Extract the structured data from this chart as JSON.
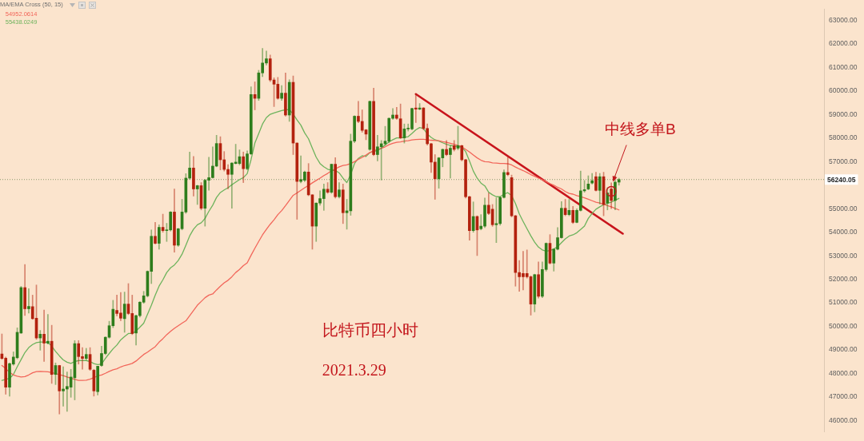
{
  "chart_data": {
    "type": "candlestick",
    "categories": [
      null,
      null,
      null,
      null,
      null,
      null,
      null,
      null,
      null,
      null,
      null,
      null,
      null,
      null,
      null,
      null,
      null,
      null,
      null,
      null,
      null,
      null,
      null,
      null,
      null,
      null,
      null,
      null,
      null,
      null,
      null,
      null,
      null,
      null,
      null,
      null,
      null,
      null,
      null,
      null,
      null,
      null,
      null,
      null,
      null,
      null,
      null,
      null,
      null,
      null,
      null,
      null,
      null,
      null,
      null,
      null,
      null,
      null,
      null,
      null,
      null,
      null,
      null,
      null,
      null,
      null,
      null,
      null,
      null,
      null,
      null,
      null,
      null,
      null,
      null,
      null,
      null,
      null,
      null,
      null,
      null,
      null,
      null,
      null,
      null,
      null,
      null,
      null,
      null,
      null,
      null,
      null,
      null,
      null,
      null,
      null,
      null,
      null,
      null,
      null,
      null,
      null,
      null,
      null,
      null,
      null,
      null,
      null,
      null,
      null,
      null,
      null,
      null,
      null,
      null,
      null,
      null,
      null,
      null,
      null,
      null,
      null,
      null,
      null,
      null,
      null,
      null,
      null,
      null,
      null,
      null,
      null,
      null,
      null,
      null,
      null,
      null,
      null,
      null,
      null,
      null,
      null,
      null,
      null,
      null,
      null,
      null,
      null,
      null,
      null,
      null,
      null,
      null,
      null,
      null,
      null,
      null,
      null,
      null,
      null,
      null,
      null,
      null,
      null,
      null,
      null,
      null,
      null,
      null,
      null,
      null,
      null,
      null,
      null,
      null,
      null,
      null,
      null,
      null,
      null,
      null,
      null,
      null,
      null,
      null,
      null,
      null,
      null,
      null,
      null,
      null,
      null,
      null,
      null,
      null,
      null,
      null,
      null,
      null,
      null,
      null,
      null,
      null,
      null,
      null,
      null,
      null,
      null,
      null,
      null,
      null,
      null,
      null,
      null,
      null
    ],
    "ohlc": [
      [
        48830,
        49680,
        48600,
        48640
      ],
      [
        48650,
        48700,
        47120,
        47420
      ],
      [
        47420,
        48450,
        47040,
        48420
      ],
      [
        48400,
        48920,
        48350,
        48700
      ],
      [
        48670,
        49940,
        48620,
        49750
      ],
      [
        49720,
        51700,
        49700,
        51650
      ],
      [
        51650,
        52630,
        50460,
        50750
      ],
      [
        50750,
        51600,
        50570,
        50850
      ],
      [
        50840,
        51330,
        50300,
        50330
      ],
      [
        50350,
        51760,
        49450,
        49510
      ],
      [
        49510,
        49830,
        48990,
        49670
      ],
      [
        49670,
        50700,
        48510,
        49290
      ],
      [
        49290,
        50510,
        49250,
        49370
      ],
      [
        49370,
        50050,
        47580,
        47960
      ],
      [
        47960,
        48450,
        47530,
        48340
      ],
      [
        48340,
        48350,
        46280,
        47260
      ],
      [
        47260,
        48290,
        46610,
        47340
      ],
      [
        47340,
        48070,
        46390,
        47450
      ],
      [
        47420,
        48180,
        46990,
        47850
      ],
      [
        47820,
        49400,
        46880,
        49270
      ],
      [
        49270,
        49400,
        48400,
        48720
      ],
      [
        48720,
        49100,
        48180,
        48640
      ],
      [
        48640,
        49070,
        48570,
        48810
      ],
      [
        48810,
        49100,
        48130,
        48180
      ],
      [
        48140,
        48180,
        47040,
        47260
      ],
      [
        47230,
        48310,
        47090,
        48310
      ],
      [
        48340,
        49160,
        48300,
        48850
      ],
      [
        48850,
        49560,
        48800,
        49540
      ],
      [
        49540,
        50220,
        49500,
        50030
      ],
      [
        50030,
        51110,
        49950,
        50730
      ],
      [
        50680,
        51330,
        50450,
        50550
      ],
      [
        50570,
        51440,
        50240,
        50350
      ],
      [
        50330,
        51460,
        49750,
        50950
      ],
      [
        50950,
        51820,
        50500,
        50550
      ],
      [
        50550,
        51330,
        49650,
        49700
      ],
      [
        49720,
        50480,
        49210,
        50460
      ],
      [
        50460,
        51050,
        50400,
        51030
      ],
      [
        51030,
        51490,
        50980,
        51300
      ],
      [
        51300,
        52360,
        51250,
        52340
      ],
      [
        52340,
        54100,
        51820,
        53830
      ],
      [
        53830,
        54420,
        53500,
        53530
      ],
      [
        53530,
        54320,
        53280,
        54210
      ],
      [
        54210,
        54770,
        54000,
        54070
      ],
      [
        54070,
        54380,
        53610,
        54100
      ],
      [
        54100,
        54880,
        54050,
        54860
      ],
      [
        54860,
        55840,
        53150,
        53450
      ],
      [
        53450,
        54170,
        53400,
        54150
      ],
      [
        54150,
        55400,
        54100,
        54860
      ],
      [
        54860,
        56490,
        54800,
        56300
      ],
      [
        56300,
        57410,
        56250,
        56730
      ],
      [
        56730,
        57220,
        55540,
        55840
      ],
      [
        55840,
        56000,
        55180,
        55980
      ],
      [
        55980,
        56110,
        54950,
        55020
      ],
      [
        55020,
        56250,
        54260,
        56210
      ],
      [
        56210,
        57190,
        55780,
        56320
      ],
      [
        56320,
        57630,
        56300,
        56810
      ],
      [
        56810,
        58120,
        56780,
        57770
      ],
      [
        57770,
        58060,
        56650,
        57080
      ],
      [
        57080,
        57430,
        56600,
        56670
      ],
      [
        56670,
        56870,
        55840,
        56460
      ],
      [
        56460,
        56960,
        55020,
        56940
      ],
      [
        56920,
        57740,
        56900,
        56980
      ],
      [
        56920,
        57500,
        56860,
        57210
      ],
      [
        57210,
        57410,
        56110,
        56700
      ],
      [
        56700,
        57460,
        56650,
        57330
      ],
      [
        57330,
        60180,
        57300,
        59850
      ],
      [
        59850,
        60390,
        59200,
        59690
      ],
      [
        59690,
        60880,
        59600,
        60770
      ],
      [
        60770,
        61810,
        60610,
        61190
      ],
      [
        61190,
        61700,
        61100,
        61370
      ],
      [
        61370,
        61530,
        60400,
        60470
      ],
      [
        60470,
        60560,
        59340,
        60290
      ],
      [
        60290,
        60580,
        59650,
        59690
      ],
      [
        59690,
        60230,
        59600,
        59910
      ],
      [
        59910,
        60770,
        58930,
        58980
      ],
      [
        58980,
        60480,
        58710,
        60370
      ],
      [
        60370,
        60640,
        57300,
        57790
      ],
      [
        57790,
        57800,
        54550,
        56160
      ],
      [
        56160,
        57250,
        56100,
        56240
      ],
      [
        56210,
        56600,
        56150,
        56560
      ],
      [
        56560,
        56920,
        55550,
        55590
      ],
      [
        55590,
        55600,
        53280,
        54260
      ],
      [
        54260,
        55250,
        53610,
        55240
      ],
      [
        55240,
        55760,
        55150,
        55430
      ],
      [
        55430,
        56050,
        54930,
        55830
      ],
      [
        55830,
        56110,
        55650,
        55700
      ],
      [
        55700,
        56900,
        55650,
        56890
      ],
      [
        56890,
        57170,
        55450,
        55510
      ],
      [
        55510,
        56110,
        55450,
        55800
      ],
      [
        55800,
        56050,
        54370,
        54830
      ],
      [
        54830,
        55400,
        54130,
        54910
      ],
      [
        54910,
        58170,
        54720,
        57870
      ],
      [
        57870,
        58950,
        57800,
        58930
      ],
      [
        58930,
        59560,
        58650,
        58710
      ],
      [
        58710,
        59200,
        58250,
        58330
      ],
      [
        58350,
        58370,
        57930,
        58170
      ],
      [
        57520,
        59580,
        57480,
        59560
      ],
      [
        59560,
        60120,
        57250,
        57300
      ],
      [
        57300,
        58120,
        57030,
        57630
      ],
      [
        57630,
        57900,
        56220,
        57760
      ],
      [
        57760,
        58500,
        57700,
        57870
      ],
      [
        57870,
        58860,
        57800,
        58840
      ],
      [
        58840,
        59260,
        58800,
        58980
      ],
      [
        58980,
        59310,
        58800,
        58840
      ],
      [
        58820,
        59450,
        57980,
        58010
      ],
      [
        58010,
        58600,
        57790,
        58390
      ],
      [
        58390,
        58600,
        58300,
        58410
      ],
      [
        58390,
        59270,
        58350,
        59260
      ],
      [
        59280,
        59890,
        58660,
        59230
      ],
      [
        59230,
        59470,
        59200,
        59280
      ],
      [
        59280,
        59300,
        58350,
        58410
      ],
      [
        58410,
        58600,
        57700,
        57760
      ],
      [
        57760,
        57780,
        56540,
        56980
      ],
      [
        56980,
        57300,
        55400,
        56270
      ],
      [
        56270,
        57180,
        55870,
        57160
      ],
      [
        57160,
        57540,
        56780,
        57520
      ],
      [
        57520,
        57900,
        57250,
        57300
      ],
      [
        57300,
        57680,
        56300,
        57570
      ],
      [
        57680,
        57900,
        57450,
        57520
      ],
      [
        57570,
        58500,
        57500,
        57680
      ],
      [
        57680,
        57700,
        57030,
        57080
      ],
      [
        57080,
        57100,
        55450,
        55510
      ],
      [
        55510,
        55530,
        53660,
        54070
      ],
      [
        54070,
        55290,
        54000,
        54670
      ],
      [
        54670,
        54700,
        53010,
        54100
      ],
      [
        54150,
        54750,
        54100,
        54260
      ],
      [
        54260,
        55460,
        54200,
        55150
      ],
      [
        55150,
        55670,
        54750,
        54800
      ],
      [
        54980,
        55180,
        54250,
        54320
      ],
      [
        54320,
        55460,
        53560,
        54370
      ],
      [
        54370,
        55500,
        54300,
        55480
      ],
      [
        55480,
        56650,
        55450,
        56540
      ],
      [
        56540,
        57190,
        56400,
        56450
      ],
      [
        56320,
        56430,
        54650,
        54700
      ],
      [
        54700,
        54720,
        51710,
        52290
      ],
      [
        52290,
        52800,
        51490,
        52110
      ],
      [
        52250,
        53190,
        51550,
        52110
      ],
      [
        52250,
        53250,
        52050,
        52110
      ],
      [
        52110,
        52150,
        50480,
        50950
      ],
      [
        50950,
        52220,
        50620,
        52200
      ],
      [
        52200,
        52740,
        51200,
        51280
      ],
      [
        51280,
        52740,
        51220,
        52420
      ],
      [
        52420,
        53550,
        52350,
        53530
      ],
      [
        53530,
        53900,
        52650,
        52690
      ],
      [
        52690,
        53300,
        52350,
        53280
      ],
      [
        53280,
        54200,
        53250,
        53770
      ],
      [
        53770,
        55300,
        53750,
        55020
      ],
      [
        55020,
        55400,
        54700,
        54750
      ],
      [
        54750,
        55400,
        54700,
        54930
      ],
      [
        54930,
        55100,
        54370,
        54420
      ],
      [
        54420,
        55000,
        54400,
        54930
      ],
      [
        54930,
        56600,
        54900,
        55760
      ],
      [
        55760,
        56200,
        55700,
        55810
      ],
      [
        55840,
        56400,
        55800,
        56050
      ],
      [
        56090,
        56500,
        56050,
        56190
      ],
      [
        56360,
        56550,
        55750,
        55780
      ],
      [
        55780,
        56500,
        55200,
        56360
      ],
      [
        56360,
        56550,
        54700,
        55180
      ],
      [
        55240,
        55900,
        54950,
        55670
      ],
      [
        55840,
        56100,
        55000,
        55350
      ],
      [
        55350,
        56400,
        54950,
        56130
      ],
      [
        56130,
        56300,
        56000,
        56240
      ],
      null,
      null,
      null,
      null,
      null,
      null,
      null,
      null,
      null,
      null,
      null,
      null,
      null,
      null,
      null,
      null,
      null,
      null,
      null,
      null,
      null,
      null,
      null,
      null,
      null,
      null,
      null,
      null,
      null,
      null,
      null,
      null,
      null,
      null,
      null,
      null,
      null,
      null,
      null,
      null,
      null,
      null,
      null,
      null,
      null,
      null,
      null,
      null,
      null,
      null,
      null,
      null,
      null
    ],
    "colors": [
      "#b3210e",
      "#b3210e",
      "#2e7d1c",
      "#2e7d1c",
      "#2e7d1c",
      "#2e7d1c",
      "#b3210e",
      "#2e7d1c",
      "#b3210e",
      "#b3210e",
      "#2e7d1c",
      "#b3210e",
      "#2e7d1c",
      "#b3210e",
      "#2e7d1c",
      "#b3210e",
      "#2e7d1c",
      "#2e7d1c",
      "#2e7d1c",
      "#2e7d1c",
      "#b3210e",
      "#b3210e",
      "#2e7d1c",
      "#b3210e",
      "#b3210e",
      "#2e7d1c",
      "#2e7d1c",
      "#2e7d1c",
      "#2e7d1c",
      "#2e7d1c",
      "#b3210e",
      "#b3210e",
      "#2e7d1c",
      "#b3210e",
      "#b3210e",
      "#2e7d1c",
      "#2e7d1c",
      "#2e7d1c",
      "#2e7d1c",
      "#2e7d1c",
      "#b3210e",
      "#2e7d1c",
      "#b3210e",
      "#2e7d1c",
      "#2e7d1c",
      "#b3210e",
      "#2e7d1c",
      "#2e7d1c",
      "#2e7d1c",
      "#2e7d1c",
      "#b3210e",
      "#2e7d1c",
      "#b3210e",
      "#2e7d1c",
      "#2e7d1c",
      "#2e7d1c",
      "#2e7d1c",
      "#b3210e",
      "#b3210e",
      "#b3210e",
      "#2e7d1c",
      "#2e7d1c",
      "#2e7d1c",
      "#b3210e",
      "#2e7d1c",
      "#2e7d1c",
      "#b3210e",
      "#2e7d1c",
      "#2e7d1c",
      "#2e7d1c",
      "#b3210e",
      "#b3210e",
      "#b3210e",
      "#2e7d1c",
      "#b3210e",
      "#2e7d1c",
      "#b3210e",
      "#b3210e",
      "#2e7d1c",
      "#2e7d1c",
      "#b3210e",
      "#b3210e",
      "#2e7d1c",
      "#2e7d1c",
      "#2e7d1c",
      "#b3210e",
      "#2e7d1c",
      "#b3210e",
      "#2e7d1c",
      "#b3210e",
      "#2e7d1c",
      "#2e7d1c",
      "#2e7d1c",
      "#b3210e",
      "#b3210e",
      "#b3210e",
      "#2e7d1c",
      "#b3210e",
      "#2e7d1c",
      "#2e7d1c",
      "#2e7d1c",
      "#2e7d1c",
      "#2e7d1c",
      "#b3210e",
      "#b3210e",
      "#2e7d1c",
      "#2e7d1c",
      "#2e7d1c",
      "#b3210e",
      "#2e7d1c",
      "#b3210e",
      "#b3210e",
      "#b3210e",
      "#b3210e",
      "#2e7d1c",
      "#2e7d1c",
      "#b3210e",
      "#2e7d1c",
      "#b3210e",
      "#2e7d1c",
      "#b3210e",
      "#b3210e",
      "#b3210e",
      "#2e7d1c",
      "#b3210e",
      "#2e7d1c",
      "#2e7d1c",
      "#b3210e",
      "#b3210e",
      "#2e7d1c",
      "#2e7d1c",
      "#2e7d1c",
      "#b3210e",
      "#b3210e",
      "#b3210e",
      "#b3210e",
      "#b3210e",
      "#b3210e",
      "#b3210e",
      "#2e7d1c",
      "#b3210e",
      "#2e7d1c",
      "#2e7d1c",
      "#b3210e",
      "#2e7d1c",
      "#2e7d1c",
      "#2e7d1c",
      "#b3210e",
      "#2e7d1c",
      "#b3210e",
      "#2e7d1c",
      "#2e7d1c",
      "#2e7d1c",
      "#2e7d1c",
      "#2e7d1c",
      "#b3210e",
      "#2e7d1c",
      "#b3210e",
      "#2e7d1c",
      "#b3210e",
      "#2e7d1c",
      "#2e7d1c",
      null,
      null,
      null,
      null,
      null,
      null,
      null,
      null,
      null,
      null,
      null,
      null,
      null,
      null,
      null,
      null,
      null,
      null,
      null,
      null,
      null,
      null,
      null,
      null,
      null,
      null,
      null,
      null,
      null,
      null,
      null,
      null,
      null,
      null,
      null,
      null,
      null,
      null,
      null,
      null,
      null,
      null,
      null,
      null,
      null,
      null,
      null,
      null,
      null,
      null,
      null,
      null,
      null
    ],
    "series": [
      {
        "type": "line",
        "name": "54952.0614",
        "color": "#f2665a",
        "values": [
          48340,
          48210,
          48050,
          47940,
          47890,
          47850,
          47870,
          47940,
          48030,
          48080,
          48090,
          48080,
          48070,
          48040,
          48000,
          47950,
          47910,
          47850,
          47800,
          47750,
          47710,
          47710,
          47720,
          47760,
          47830,
          47900,
          47940,
          48010,
          48090,
          48160,
          48200,
          48280,
          48340,
          48380,
          48430,
          48530,
          48670,
          48810,
          48910,
          49030,
          49140,
          49330,
          49480,
          49650,
          49790,
          49920,
          50030,
          50140,
          50240,
          50460,
          50680,
          50900,
          51060,
          51220,
          51330,
          51380,
          51550,
          51710,
          51850,
          51960,
          52110,
          52290,
          52420,
          52580,
          52700,
          53020,
          53320,
          53610,
          53890,
          54120,
          54340,
          54530,
          54750,
          54920,
          55130,
          55350,
          55570,
          55670,
          55780,
          55890,
          55990,
          56100,
          56200,
          56300,
          56410,
          56500,
          56610,
          56690,
          56780,
          56840,
          56860,
          56920,
          57000,
          57100,
          57180,
          57280,
          57390,
          57460,
          57520,
          57570,
          57630,
          57720,
          57780,
          57820,
          57840,
          57870,
          57890,
          57920,
          57940,
          57950,
          57950,
          57930,
          57910,
          57900,
          57890,
          57850,
          57820,
          57780,
          57740,
          57690,
          57630,
          57520,
          57410,
          57280,
          57160,
          57060,
          57000,
          56990,
          56950,
          56940,
          56920,
          56920,
          56910,
          56860,
          56770,
          56690,
          56620,
          56540,
          56450,
          56380,
          56300,
          56230,
          56150,
          56070,
          56000,
          55910,
          55840,
          55730,
          55650,
          55620,
          55560,
          55510,
          55460,
          55400,
          55340,
          55280,
          55240,
          55190,
          55130,
          55080,
          55010,
          54950,
          null,
          null,
          null,
          null,
          null,
          null,
          null,
          null,
          null,
          null,
          null,
          null,
          null,
          null,
          null,
          null,
          null,
          null,
          null,
          null,
          null,
          null,
          null,
          null,
          null,
          null,
          null,
          null,
          null,
          null,
          null,
          null,
          null,
          null,
          null,
          null,
          null,
          null,
          null,
          null,
          null,
          null,
          null,
          null,
          null,
          null,
          null,
          null,
          null,
          null,
          null,
          null,
          null
        ]
      },
      {
        "type": "line",
        "name": "55438.0249",
        "color": "#6db35c",
        "values": [
          47710,
          47750,
          47790,
          47960,
          48290,
          48590,
          48890,
          49100,
          49230,
          49310,
          49340,
          49340,
          49320,
          49160,
          48940,
          48750,
          48580,
          48480,
          48430,
          48510,
          48550,
          48560,
          48550,
          48510,
          48420,
          48380,
          48400,
          48640,
          48850,
          49050,
          49210,
          49430,
          49570,
          49700,
          49700,
          49810,
          49970,
          50140,
          50520,
          50900,
          51330,
          51710,
          51980,
          52290,
          52490,
          52610,
          52800,
          53070,
          53450,
          53850,
          54130,
          54320,
          54400,
          54590,
          54890,
          55150,
          55480,
          55690,
          55800,
          55890,
          56020,
          56130,
          56240,
          56320,
          56490,
          57080,
          57790,
          58190,
          58600,
          58870,
          59010,
          59070,
          59120,
          59170,
          59200,
          59210,
          59020,
          58770,
          58550,
          58220,
          57970,
          57570,
          57190,
          56920,
          56780,
          56680,
          56630,
          56630,
          56520,
          56300,
          56110,
          56450,
          56920,
          57140,
          57250,
          57220,
          57380,
          57440,
          57470,
          57570,
          57710,
          57840,
          57930,
          58010,
          58010,
          58030,
          58060,
          58200,
          58350,
          58450,
          58410,
          58170,
          58030,
          57930,
          57870,
          57800,
          57740,
          57690,
          57660,
          57640,
          57610,
          57430,
          57030,
          56600,
          56300,
          56090,
          55970,
          55700,
          55590,
          55510,
          55510,
          55620,
          55680,
          55560,
          55220,
          54780,
          54460,
          54150,
          53850,
          53580,
          53370,
          53250,
          53200,
          53220,
          53290,
          53390,
          53560,
          53720,
          53840,
          53890,
          53980,
          54120,
          54260,
          54590,
          54800,
          54980,
          55080,
          55170,
          55230,
          55280,
          55360,
          55440,
          null,
          null,
          null,
          null,
          null,
          null,
          null,
          null,
          null,
          null,
          null,
          null,
          null,
          null,
          null,
          null,
          null,
          null,
          null,
          null,
          null,
          null,
          null,
          null,
          null,
          null,
          null,
          null,
          null,
          null,
          null,
          null,
          null,
          null,
          null,
          null,
          null,
          null,
          null,
          null,
          null,
          null,
          null,
          null,
          null,
          null,
          null,
          null,
          null,
          null,
          null,
          null,
          null
        ]
      },
      {
        "type": "line",
        "color": "#c8141c",
        "values": [
          null,
          null,
          null,
          null,
          null,
          null,
          null,
          null,
          null,
          null,
          null,
          null,
          null,
          null,
          null,
          null,
          null,
          null,
          null,
          null,
          null,
          null,
          null,
          null,
          null,
          null,
          null,
          null,
          null,
          null,
          null,
          null,
          null,
          null,
          null,
          null,
          null,
          null,
          null,
          null,
          null,
          null,
          null,
          null,
          null,
          null,
          null,
          null,
          null,
          null,
          null,
          null,
          null,
          null,
          null,
          null,
          null,
          null,
          null,
          null,
          null,
          null,
          null,
          null,
          null,
          null,
          null,
          null,
          null,
          null,
          null,
          null,
          null,
          null,
          null,
          null,
          null,
          null,
          null,
          null,
          null,
          null,
          null,
          null,
          null,
          null,
          null,
          null,
          null,
          null,
          null,
          null,
          null,
          null,
          null,
          null,
          null,
          null,
          null,
          null,
          null,
          null,
          null,
          null,
          null,
          null,
          null,
          null,
          59870,
          null,
          null,
          null,
          null,
          null,
          null,
          null,
          null,
          null,
          null,
          null,
          null,
          null,
          null,
          null,
          null,
          null,
          null,
          null,
          null,
          null,
          null,
          null,
          null,
          null,
          null,
          null,
          null,
          null,
          null,
          null,
          null,
          null,
          null,
          null,
          null,
          null,
          null,
          null,
          null,
          null,
          null,
          null,
          null,
          null,
          null,
          null,
          null,
          null,
          null,
          null,
          null,
          null,
          53940,
          null,
          null,
          null,
          null,
          null,
          null,
          null,
          null,
          null,
          null,
          null,
          null,
          null,
          null,
          null,
          null,
          null,
          null,
          null,
          null,
          null,
          null,
          null,
          null,
          null,
          null,
          null,
          null,
          null,
          null,
          null,
          null,
          null,
          null,
          null,
          null,
          null,
          null,
          null,
          null,
          null,
          null,
          null,
          null,
          null,
          null,
          null,
          null,
          null,
          null,
          null,
          null
        ]
      }
    ],
    "ylim": [
      45510,
      63490
    ],
    "yticks": [
      {
        "value": 46000,
        "label": "46000.00"
      },
      {
        "value": 47000,
        "label": "47000.00"
      },
      {
        "value": 48000,
        "label": "48000.00"
      },
      {
        "value": 49000,
        "label": "49000.00"
      },
      {
        "value": 50000,
        "label": "50000.00"
      },
      {
        "value": 51000,
        "label": "51000.00"
      },
      {
        "value": 52000,
        "label": "52000.00"
      },
      {
        "value": 53000,
        "label": "53000.00"
      },
      {
        "value": 54000,
        "label": "54000.00"
      },
      {
        "value": 55000,
        "label": "55000.00"
      },
      {
        "value": 57000,
        "label": "57000.00"
      },
      {
        "value": 58000,
        "label": "58000.00"
      },
      {
        "value": 59000,
        "label": "59000.00"
      },
      {
        "value": 60000,
        "label": "60000.00"
      },
      {
        "value": 61000,
        "label": "61000.00"
      },
      {
        "value": 62000,
        "label": "62000.00"
      },
      {
        "value": 63000,
        "label": "63000.00"
      }
    ],
    "tick_labels": "y",
    "legend": "top left",
    "legend_title": "MA/EMA Cross (50, 15)",
    "ref_lines": [
      {
        "axis": "y",
        "value": 56240.05,
        "label": "56240.05",
        "color": "#8f9a6e",
        "line_style": "dotted"
      }
    ],
    "annotations": [
      "中线多单B",
      "比特币四小时",
      "2021.3.29"
    ]
  }
}
